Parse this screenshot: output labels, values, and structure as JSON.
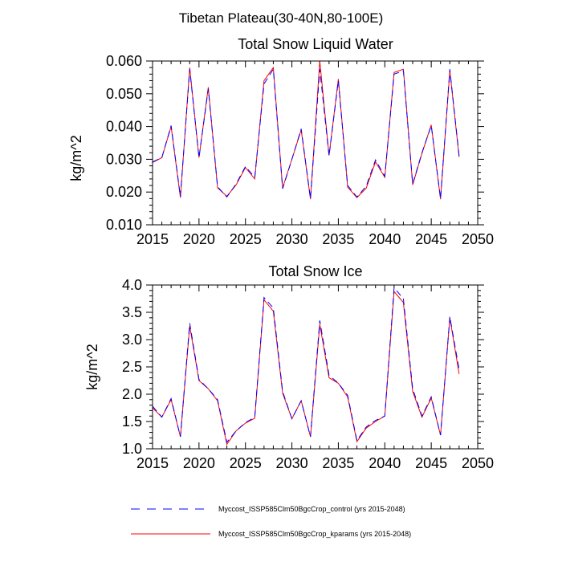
{
  "figure_title": "Tibetan Plateau(30-40N,80-100E)",
  "colors": {
    "control": "#0000ff",
    "kparams": "#ff0000",
    "axis": "#000000"
  },
  "legend": {
    "entries": [
      {
        "label": "Myccost_ISSP585Clm50BgcCrop_control (yrs 2015-2048)",
        "style": "dashed",
        "color": "#0000ff"
      },
      {
        "label": "Myccost_ISSP585Clm50BgcCrop_kparams (yrs 2015-2048)",
        "style": "solid",
        "color": "#ff0000"
      }
    ]
  },
  "chart_data": [
    {
      "type": "line",
      "title": "Total Snow Liquid Water",
      "xlabel": "",
      "ylabel": "kg/m^2",
      "xlim": [
        2015,
        2050
      ],
      "ylim": [
        0.01,
        0.06
      ],
      "xticks": [
        2015,
        2020,
        2025,
        2030,
        2035,
        2040,
        2045,
        2050
      ],
      "xtick_labels": [
        "2015",
        "2020",
        "2025",
        "2030",
        "2035",
        "2040",
        "2045",
        "2050"
      ],
      "yticks": [
        0.01,
        0.02,
        0.03,
        0.04,
        0.05,
        0.06
      ],
      "ytick_labels": [
        "0.010",
        "0.020",
        "0.030",
        "0.040",
        "0.050",
        "0.060"
      ],
      "x": [
        2015,
        2016,
        2017,
        2018,
        2019,
        2020,
        2021,
        2022,
        2023,
        2024,
        2025,
        2026,
        2027,
        2028,
        2029,
        2030,
        2031,
        2032,
        2033,
        2034,
        2035,
        2036,
        2037,
        2038,
        2039,
        2040,
        2041,
        2042,
        2043,
        2044,
        2045,
        2046,
        2047,
        2048
      ],
      "series": [
        {
          "name": "Myccost_ISSP585Clm50BgcCrop_control",
          "style": "dashed",
          "values": [
            0.0292,
            0.0305,
            0.0403,
            0.0186,
            0.0575,
            0.0305,
            0.0515,
            0.0216,
            0.0185,
            0.0225,
            0.0278,
            0.0245,
            0.053,
            0.0575,
            0.021,
            0.03,
            0.0393,
            0.018,
            0.0575,
            0.031,
            0.054,
            0.022,
            0.0185,
            0.0218,
            0.0298,
            0.0248,
            0.056,
            0.057,
            0.0225,
            0.032,
            0.0403,
            0.018,
            0.0575,
            0.031
          ]
        },
        {
          "name": "Myccost_ISSP585Clm50BgcCrop_kparams",
          "style": "solid",
          "values": [
            0.029,
            0.0305,
            0.04,
            0.0183,
            0.058,
            0.0305,
            0.052,
            0.0213,
            0.0187,
            0.0222,
            0.0275,
            0.024,
            0.054,
            0.058,
            0.0213,
            0.03,
            0.039,
            0.0178,
            0.06,
            0.0312,
            0.0545,
            0.0215,
            0.0183,
            0.0212,
            0.0292,
            0.0245,
            0.0565,
            0.0575,
            0.0222,
            0.0318,
            0.0405,
            0.0178,
            0.057,
            0.0307
          ]
        }
      ]
    },
    {
      "type": "line",
      "title": "Total Snow Ice",
      "xlabel": "",
      "ylabel": "kg/m^2",
      "xlim": [
        2015,
        2050
      ],
      "ylim": [
        1.0,
        4.0
      ],
      "xticks": [
        2015,
        2020,
        2025,
        2030,
        2035,
        2040,
        2045,
        2050
      ],
      "xtick_labels": [
        "2015",
        "2020",
        "2025",
        "2030",
        "2035",
        "2040",
        "2045",
        "2050"
      ],
      "yticks": [
        1.0,
        1.5,
        2.0,
        2.5,
        3.0,
        3.5,
        4.0
      ],
      "ytick_labels": [
        "1.0",
        "1.5",
        "2.0",
        "2.5",
        "3.0",
        "3.5",
        "4.0"
      ],
      "x": [
        2015,
        2016,
        2017,
        2018,
        2019,
        2020,
        2021,
        2022,
        2023,
        2024,
        2025,
        2026,
        2027,
        2028,
        2029,
        2030,
        2031,
        2032,
        2033,
        2034,
        2035,
        2036,
        2037,
        2038,
        2039,
        2040,
        2041,
        2042,
        2043,
        2044,
        2045,
        2046,
        2047,
        2048
      ],
      "series": [
        {
          "name": "Myccost_ISSP585Clm50BgcCrop_control",
          "style": "dashed",
          "values": [
            1.78,
            1.58,
            1.92,
            1.22,
            3.3,
            2.27,
            2.1,
            1.9,
            1.12,
            1.33,
            1.48,
            1.58,
            3.77,
            3.58,
            2.05,
            1.55,
            1.88,
            1.22,
            3.35,
            2.35,
            2.2,
            1.98,
            1.15,
            1.4,
            1.52,
            1.6,
            3.95,
            3.75,
            2.1,
            1.6,
            1.95,
            1.25,
            3.42,
            2.45
          ]
        },
        {
          "name": "Myccost_ISSP585Clm50BgcCrop_kparams",
          "style": "solid",
          "values": [
            1.75,
            1.58,
            1.9,
            1.22,
            3.25,
            2.25,
            2.1,
            1.88,
            1.08,
            1.33,
            1.47,
            1.56,
            3.73,
            3.52,
            2.02,
            1.55,
            1.88,
            1.22,
            3.28,
            2.3,
            2.2,
            1.95,
            1.13,
            1.38,
            1.5,
            1.6,
            3.88,
            3.68,
            2.05,
            1.58,
            1.93,
            1.25,
            3.4,
            2.37
          ]
        }
      ]
    }
  ]
}
